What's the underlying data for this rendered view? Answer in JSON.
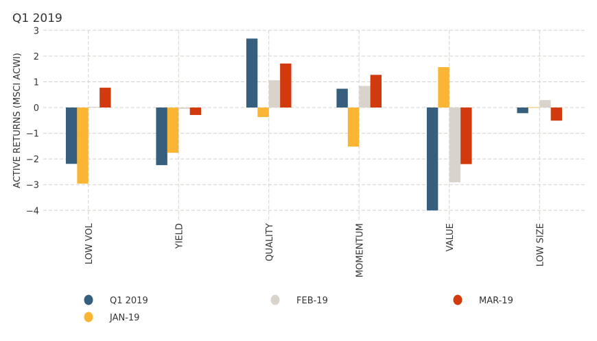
{
  "chart_data": {
    "type": "bar",
    "title": "Q1 2019",
    "xlabel": "",
    "ylabel": "ACTIVE RETURNS (MSCI ACWI)",
    "ylim": [
      -4,
      3
    ],
    "yticks": [
      3,
      2,
      1,
      0,
      -1,
      -2,
      -3,
      -4
    ],
    "grid": true,
    "legend_position": "bottom",
    "categories": [
      "LOW VOL",
      "YIELD",
      "QUALITY",
      "MOMENTUM",
      "VALUE",
      "LOW SIZE"
    ],
    "series": [
      {
        "name": "Q1 2019",
        "color": "#365f7d",
        "values": [
          -2.19,
          -2.24,
          2.68,
          0.73,
          -4.0,
          -0.22
        ]
      },
      {
        "name": "JAN-19",
        "color": "#fbb534",
        "values": [
          -2.96,
          -1.76,
          -0.37,
          -1.52,
          1.57,
          0.01
        ]
      },
      {
        "name": "FEB-19",
        "color": "#d9d3cc",
        "values": [
          0.03,
          -0.05,
          1.06,
          0.84,
          -2.91,
          0.29
        ]
      },
      {
        "name": "MAR-19",
        "color": "#d23a0e",
        "values": [
          0.77,
          -0.29,
          1.71,
          1.27,
          -2.2,
          -0.51
        ]
      }
    ]
  }
}
